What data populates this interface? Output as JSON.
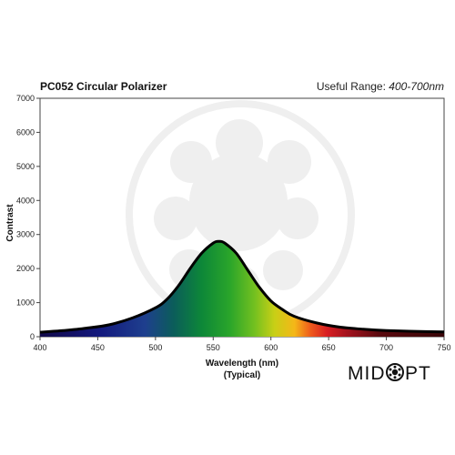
{
  "chart_data": {
    "type": "area",
    "title": "PC052 Circular Polarizer",
    "useful_range_label": "Useful Range:",
    "useful_range_value": "400-700nm",
    "xlabel": "Wavelength (nm)",
    "xlabel_sub": "(Typical)",
    "ylabel": "Contrast",
    "xlim": [
      400,
      750
    ],
    "ylim": [
      0,
      7000
    ],
    "xticks": [
      "400",
      "450",
      "500",
      "550",
      "600",
      "650",
      "700",
      "750"
    ],
    "yticks": [
      "0",
      "1000",
      "2000",
      "3000",
      "4000",
      "5000",
      "6000",
      "7000"
    ],
    "grid": false,
    "legend": "none",
    "series": [
      {
        "x": [
          400,
          420,
          440,
          460,
          480,
          500,
          510,
          520,
          530,
          540,
          550,
          555,
          560,
          570,
          580,
          590,
          600,
          610,
          620,
          640,
          660,
          680,
          700,
          720,
          750
        ],
        "y": [
          130,
          180,
          250,
          350,
          550,
          850,
          1100,
          1500,
          2000,
          2450,
          2750,
          2800,
          2750,
          2450,
          1950,
          1450,
          1050,
          800,
          600,
          400,
          280,
          220,
          180,
          160,
          140
        ]
      }
    ]
  },
  "logo": {
    "text_left": "MID",
    "text_right": "PT"
  },
  "colors": {
    "curve": "#000000",
    "background": "#ffffff",
    "watermark": "#efefef"
  }
}
